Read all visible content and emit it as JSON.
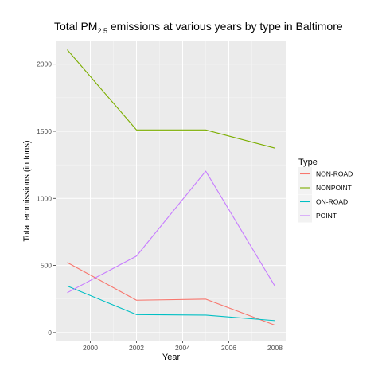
{
  "chart_data": {
    "type": "line",
    "title_main": "Total PM",
    "title_sub": "2.5",
    "title_rest": " emissions at various years by type in Baltimore",
    "xlabel": "Year",
    "ylabel": "Total emmissions (in tons)",
    "xlim": [
      1998.5,
      2008.5
    ],
    "ylim": [
      -60,
      2170
    ],
    "x_ticks": [
      2000,
      2002,
      2004,
      2006,
      2008
    ],
    "y_ticks": [
      0,
      500,
      1000,
      1500,
      2000
    ],
    "x_tick_labels": [
      "2000",
      "2002",
      "2004",
      "2006",
      "2008"
    ],
    "y_tick_labels": [
      "0",
      "500",
      "1000",
      "1500",
      "2000"
    ],
    "grid": true,
    "legend_title": "Type",
    "legend_position": "right",
    "x": [
      1999,
      2002,
      2005,
      2008
    ],
    "series": [
      {
        "name": "NON-ROAD",
        "color": "#F8766D",
        "values": [
          522,
          241,
          249,
          55
        ]
      },
      {
        "name": "NONPOINT",
        "color": "#7CAE00",
        "values": [
          2108,
          1510,
          1510,
          1374
        ]
      },
      {
        "name": "ON-ROAD",
        "color": "#00BFC4",
        "values": [
          347,
          134,
          130,
          89
        ]
      },
      {
        "name": "POINT",
        "color": "#C77CFF",
        "values": [
          297,
          570,
          1203,
          345
        ]
      }
    ]
  }
}
